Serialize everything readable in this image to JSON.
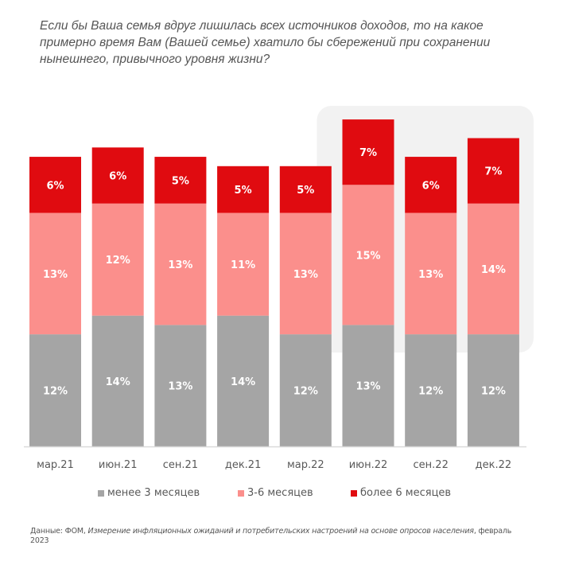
{
  "chart_data": {
    "type": "bar",
    "stacked": true,
    "title": "Если бы Ваша семья вдруг лишилась всех источников доходов, то на какое примерно время Вам (Вашей семье) хватило бы сбережений при сохранении нынешнего, привычного уровня жизни?",
    "xlabel": "",
    "ylabel": "",
    "categories": [
      "мар.21",
      "июн.21",
      "сен.21",
      "дек.21",
      "мар.22",
      "июн.22",
      "сен.22",
      "дек.22"
    ],
    "series": [
      {
        "name": "менее 3 месяцев",
        "color": "#a5a5a5",
        "values": [
          12,
          14,
          13,
          14,
          12,
          13,
          12,
          12
        ]
      },
      {
        "name": "3-6 месяцев",
        "color": "#fb8f8c",
        "values": [
          13,
          12,
          13,
          11,
          13,
          15,
          13,
          14
        ]
      },
      {
        "name": "более 6 месяцев",
        "color": "#e00b10",
        "values": [
          6,
          6,
          5,
          5,
          5,
          7,
          6,
          7
        ]
      }
    ],
    "value_format": "{v}%",
    "highlighted_categories": [
      "июн.22",
      "сен.22",
      "дек.22"
    ],
    "highlight_color": "#f2f2f2",
    "grid": false,
    "legend": "bottom",
    "axis_color": "#d9d9d9",
    "label_color": "#ffffff"
  },
  "source": {
    "prefix": "Данные: ФОМ, ",
    "italic": "Измерение инфляционных ожиданий и потребительских настроений на основе опросов населения",
    "suffix": ", февраль 2023"
  }
}
